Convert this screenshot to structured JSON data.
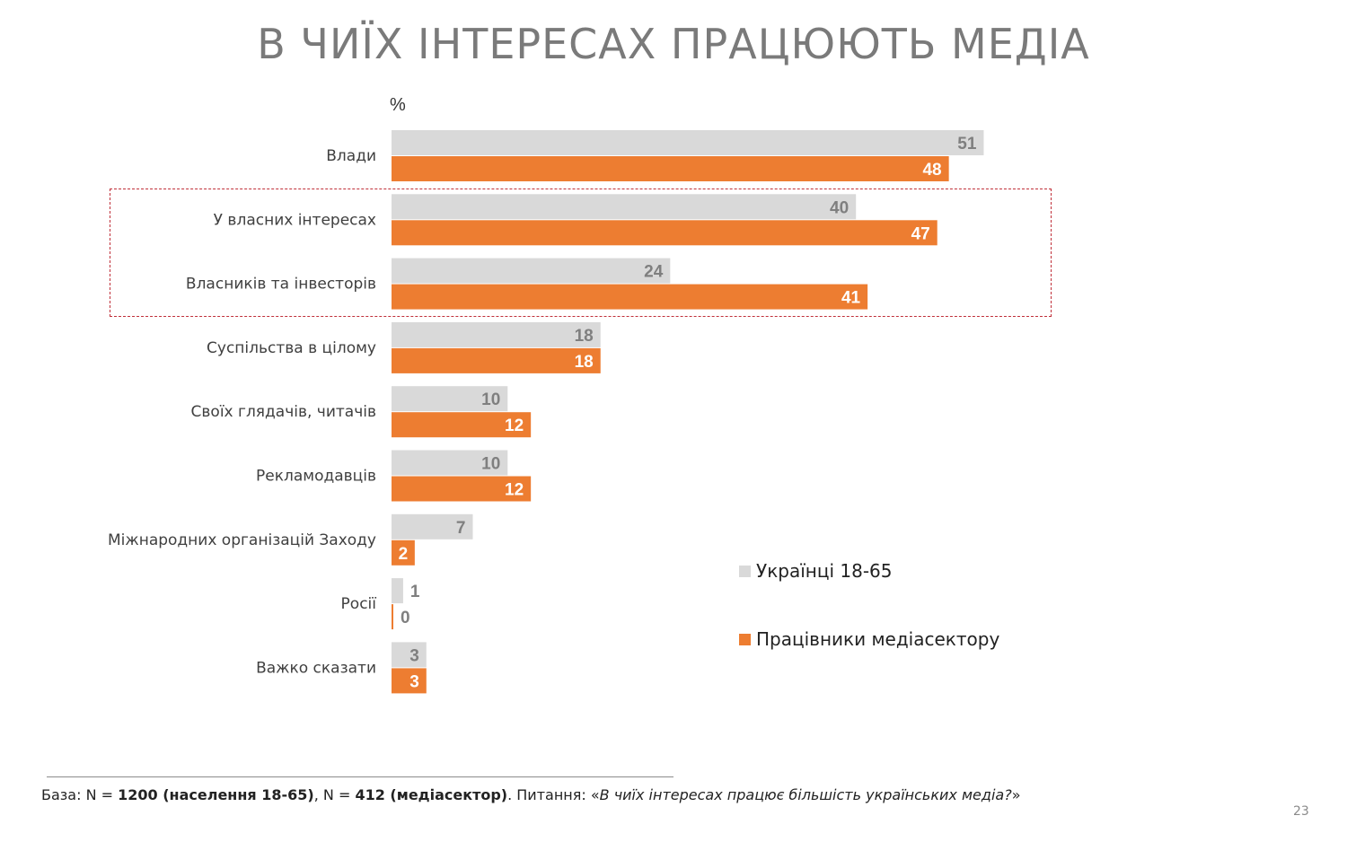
{
  "slide": {
    "title": "В ЧИЇХ ІНТЕРЕСАХ ПРАЦЮЮТЬ МЕДІА",
    "unit": "%",
    "page_number": "23"
  },
  "footnote": {
    "base_prefix": "База: N = ",
    "base_population": "1200 (населення 18-65)",
    "separator": ", N = ",
    "base_media": "412 (медіасектор)",
    "question_prefix": ". Питання: «",
    "question": "В чиїх інтересах працює більшість українських медіа?",
    "question_suffix": "»"
  },
  "colors": {
    "series_gray": "#d9d9d9",
    "series_orange": "#ed7d31",
    "label_gray": "#7f7f7f",
    "label_white": "#ffffff",
    "highlight_border": "#c0303a"
  },
  "chart_data": {
    "type": "bar",
    "orientation": "horizontal",
    "unit": "%",
    "categories": [
      "Влади",
      "У власних інтересах",
      "Власників та інвесторів",
      "Суспільства в цілому",
      "Своїх глядачів, читачів",
      "Рекламодавців",
      "Міжнародних організацій Заходу",
      "Росії",
      "Важко сказати"
    ],
    "series": [
      {
        "name": "Українці 18-65",
        "color": "#d9d9d9",
        "values": [
          51,
          40,
          24,
          18,
          10,
          10,
          7,
          1,
          3
        ]
      },
      {
        "name": "Працівники медіасектору",
        "color": "#ed7d31",
        "values": [
          48,
          47,
          41,
          18,
          12,
          12,
          2,
          0,
          3
        ]
      }
    ],
    "highlighted_categories": [
      "У власних інтересах",
      "Власників та інвесторів"
    ],
    "legend_position": "right",
    "grid": false
  }
}
